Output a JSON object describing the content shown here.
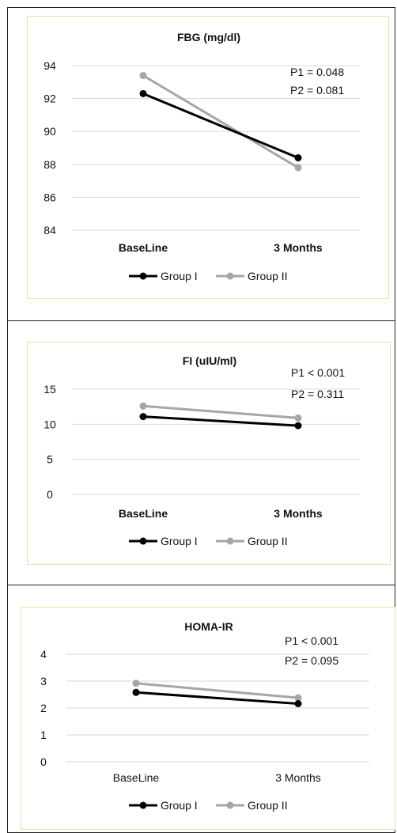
{
  "chart_data": [
    {
      "type": "line",
      "title": "FBG (mg/dl)",
      "categories": [
        "BaseLine",
        "3 Months"
      ],
      "series": [
        {
          "name": "Group I",
          "values": [
            92.3,
            88.4
          ]
        },
        {
          "name": "Group II",
          "values": [
            93.4,
            87.8
          ]
        }
      ],
      "yticks": [
        84,
        86,
        88,
        90,
        92,
        94
      ],
      "ylim": [
        84,
        94
      ],
      "annotations": [
        "P1 = 0.048",
        "P2 = 0.081"
      ],
      "bold_categories": true,
      "grid": true,
      "legend": "bottom"
    },
    {
      "type": "line",
      "title": "FI (uIU/ml)",
      "categories": [
        "BaseLine",
        "3 Months"
      ],
      "series": [
        {
          "name": "Group I",
          "values": [
            11.1,
            9.8
          ]
        },
        {
          "name": "Group II",
          "values": [
            12.6,
            10.9
          ]
        }
      ],
      "yticks": [
        0,
        5,
        10,
        15
      ],
      "ylim": [
        0,
        15
      ],
      "annotations": [
        "P1 < 0.001",
        "P2 = 0.311"
      ],
      "bold_categories": true,
      "grid": true,
      "legend": "bottom"
    },
    {
      "type": "line",
      "title": "HOMA-IR",
      "categories": [
        "BaseLine",
        "3 Months"
      ],
      "series": [
        {
          "name": "Group I",
          "values": [
            2.58,
            2.16
          ]
        },
        {
          "name": "Group II",
          "values": [
            2.92,
            2.38
          ]
        }
      ],
      "yticks": [
        0,
        1,
        2,
        3,
        4
      ],
      "ylim": [
        0,
        4
      ],
      "annotations": [
        "P1 < 0.001",
        "P2 = 0.095"
      ],
      "bold_categories": false,
      "grid": true,
      "legend": "bottom"
    }
  ],
  "colors": {
    "Group I": "#000000",
    "Group II": "#a6a6a6",
    "grid": "#d9d9d9",
    "panel_border": "#e6e2a8"
  }
}
